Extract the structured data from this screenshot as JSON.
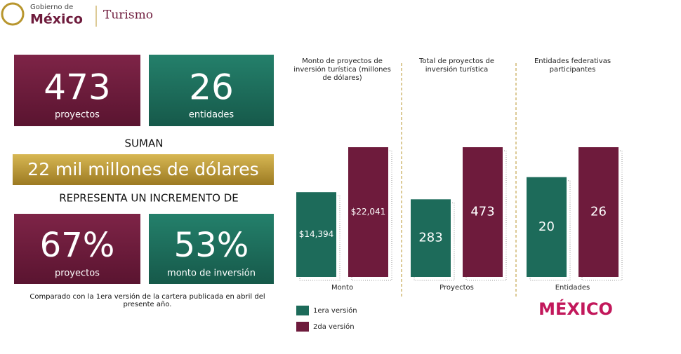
{
  "header": {
    "gov": "Gobierno de",
    "country": "México",
    "ministry": "Turismo"
  },
  "stats": {
    "boxes": [
      {
        "value": "473",
        "label": "proyectos"
      },
      {
        "value": "26",
        "label": "entidades"
      }
    ],
    "sum_label": "SUMAN",
    "total": "22 mil millones de dólares",
    "increase_label": "REPRESENTA UN INCREMENTO DE",
    "increases": [
      {
        "value": "67%",
        "label": "proyectos"
      },
      {
        "value": "53%",
        "label": "monto de inversión"
      }
    ],
    "note": "Comparado con la 1era versión de la cartera publicada en abril del presente año."
  },
  "chart_data": [
    {
      "type": "bar",
      "title": "Monto de proyectos de inversión turística (millones de dólares)",
      "categories": [
        "Monto"
      ],
      "series": [
        {
          "name": "1era versión",
          "color": "#1d6b5a",
          "values": [
            14394
          ],
          "value_labels": [
            "$14,394"
          ]
        },
        {
          "name": "2da versión",
          "color": "#6e1b3c",
          "values": [
            22041
          ],
          "value_labels": [
            "$22,041"
          ]
        }
      ]
    },
    {
      "type": "bar",
      "title": "Total de proyectos de inversión turística",
      "categories": [
        "Proyectos"
      ],
      "series": [
        {
          "color": "#1d6b5a",
          "values": [
            283
          ]
        },
        {
          "color": "#6e1b3c",
          "values": [
            473
          ]
        }
      ]
    },
    {
      "type": "bar",
      "title": "Entidades federativas participantes",
      "categories": [
        "Entidades"
      ],
      "series": [
        {
          "color": "#1d6b5a",
          "values": [
            20
          ]
        },
        {
          "color": "#6e1b3c",
          "values": [
            26
          ]
        }
      ]
    }
  ],
  "logo": "MÉXICO"
}
